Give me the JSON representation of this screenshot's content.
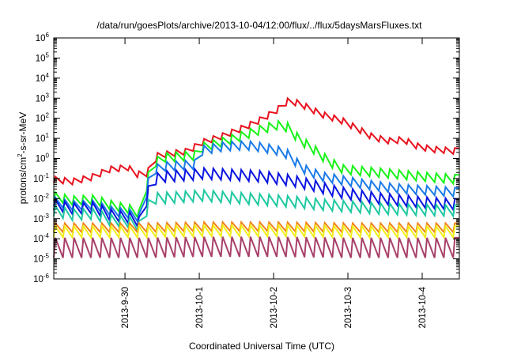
{
  "chart_data": {
    "type": "line",
    "title": "/data/run/goesPlots/archive/2013-10-04/12:00/flux/../flux/5daysMarsFluxes.txt",
    "xlabel": "Coordinated Universal Time (UTC)",
    "ylabel": {
      "base": "protons/cm",
      "sup": "2",
      "rest": "-s-sr-MeV"
    },
    "y_scale": "log",
    "ylim": [
      -6,
      6
    ],
    "y_ticks": [
      {
        "exp": -6,
        "base": "10",
        "sup": "-6"
      },
      {
        "exp": -5,
        "base": "10",
        "sup": "-5"
      },
      {
        "exp": -4,
        "base": "10",
        "sup": "-4"
      },
      {
        "exp": -3,
        "base": "10",
        "sup": "-3"
      },
      {
        "exp": -2,
        "base": "10",
        "sup": "-2"
      },
      {
        "exp": -1,
        "base": "10",
        "sup": "-1"
      },
      {
        "exp": 0,
        "base": "10",
        "sup": "0"
      },
      {
        "exp": 1,
        "base": "10",
        "sup": "1"
      },
      {
        "exp": 2,
        "base": "10",
        "sup": "2"
      },
      {
        "exp": 3,
        "base": "10",
        "sup": "3"
      },
      {
        "exp": 4,
        "base": "10",
        "sup": "4"
      },
      {
        "exp": 5,
        "base": "10",
        "sup": "5"
      },
      {
        "exp": 6,
        "base": "10",
        "sup": "6"
      }
    ],
    "x_range_days": [
      "2013-09-29 01:00",
      "2013-10-04 12:00"
    ],
    "x_ticks": [
      {
        "date": "2013-09-30",
        "label": "2013-9-30"
      },
      {
        "date": "2013-10-01",
        "label": "2013-10-1"
      },
      {
        "date": "2013-10-02",
        "label": "2013-10-2"
      },
      {
        "date": "2013-10-03",
        "label": "2013-10-3"
      },
      {
        "date": "2013-10-04",
        "label": "2013-10-4"
      }
    ],
    "grid": false,
    "legend": "none",
    "series": [
      {
        "color": "#e8121e",
        "sawtooth_decades": 0.3,
        "log10_flux": [
          [
            -1.05,
            0
          ],
          [
            -1.15,
            0.25
          ],
          [
            -0.95,
            0.5
          ],
          [
            -0.55,
            0.75
          ],
          [
            -0.45,
            1.0
          ],
          [
            -0.8,
            1.1
          ],
          [
            -0.75,
            1.25
          ],
          [
            0.15,
            1.4
          ],
          [
            0.35,
            1.8
          ],
          [
            0.8,
            2.0
          ],
          [
            1.15,
            2.3
          ],
          [
            1.6,
            2.6
          ],
          [
            1.95,
            2.8
          ],
          [
            2.4,
            3.0
          ],
          [
            2.85,
            3.15
          ],
          [
            2.75,
            3.3
          ],
          [
            2.2,
            3.6
          ],
          [
            1.85,
            3.9
          ],
          [
            1.45,
            4.1
          ],
          [
            1.05,
            4.3
          ],
          [
            0.85,
            4.55
          ],
          [
            0.95,
            4.7
          ],
          [
            0.6,
            4.9
          ],
          [
            0.45,
            5.1
          ],
          [
            0.35,
            5.47
          ]
        ]
      },
      {
        "color": "#18f218",
        "sawtooth_decades": 0.45,
        "log10_flux": [
          [
            -1.9,
            0
          ],
          [
            -2.1,
            0.25
          ],
          [
            -2.05,
            0.55
          ],
          [
            -2.3,
            0.75
          ],
          [
            -2.6,
            1.1
          ],
          [
            -2.8,
            1.15
          ],
          [
            -1.4,
            1.25
          ],
          [
            -0.3,
            1.3
          ],
          [
            0.05,
            1.5
          ],
          [
            0.15,
            1.9
          ],
          [
            0.55,
            2.0
          ],
          [
            0.85,
            2.3
          ],
          [
            1.2,
            2.6
          ],
          [
            1.45,
            2.8
          ],
          [
            1.65,
            3.0
          ],
          [
            1.55,
            3.15
          ],
          [
            0.95,
            3.3
          ],
          [
            0.45,
            3.5
          ],
          [
            -0.15,
            3.7
          ],
          [
            -0.55,
            3.9
          ],
          [
            -0.65,
            4.2
          ],
          [
            -0.75,
            4.5
          ],
          [
            -0.85,
            4.8
          ],
          [
            -0.95,
            5.1
          ],
          [
            -1.05,
            5.47
          ]
        ]
      },
      {
        "color": "#1a7ae8",
        "sawtooth_decades": 0.45,
        "log10_flux": [
          [
            -2.15,
            0
          ],
          [
            -2.35,
            0.25
          ],
          [
            -2.3,
            0.55
          ],
          [
            -2.6,
            0.75
          ],
          [
            -2.8,
            1.1
          ],
          [
            -3.0,
            1.15
          ],
          [
            -1.7,
            1.25
          ],
          [
            -0.6,
            1.3
          ],
          [
            -0.4,
            1.5
          ],
          [
            -0.3,
            1.9
          ],
          [
            0.4,
            2.0
          ],
          [
            0.6,
            2.3
          ],
          [
            0.65,
            2.6
          ],
          [
            0.55,
            2.8
          ],
          [
            0.4,
            3.0
          ],
          [
            0.2,
            3.15
          ],
          [
            -0.5,
            3.35
          ],
          [
            -0.9,
            3.6
          ],
          [
            -1.1,
            3.9
          ],
          [
            -1.3,
            4.2
          ],
          [
            -1.45,
            4.5
          ],
          [
            -1.55,
            4.8
          ],
          [
            -1.6,
            5.1
          ],
          [
            -1.7,
            5.47
          ]
        ]
      },
      {
        "color": "#0a14e0",
        "sawtooth_decades": 0.55,
        "log10_flux": [
          [
            -2.3,
            0
          ],
          [
            -2.5,
            0.25
          ],
          [
            -2.45,
            0.55
          ],
          [
            -2.8,
            0.75
          ],
          [
            -3.0,
            1.1
          ],
          [
            -3.2,
            1.15
          ],
          [
            -2.1,
            1.25
          ],
          [
            -1.1,
            1.3
          ],
          [
            -0.9,
            1.5
          ],
          [
            -0.8,
            1.9
          ],
          [
            -0.75,
            2.0
          ],
          [
            -0.8,
            2.3
          ],
          [
            -0.85,
            2.6
          ],
          [
            -0.9,
            2.8
          ],
          [
            -1.0,
            3.0
          ],
          [
            -1.1,
            3.2
          ],
          [
            -1.35,
            3.5
          ],
          [
            -1.65,
            3.8
          ],
          [
            -1.85,
            4.1
          ],
          [
            -2.0,
            4.4
          ],
          [
            -2.1,
            4.7
          ],
          [
            -2.2,
            5.0
          ],
          [
            -2.3,
            5.47
          ]
        ]
      },
      {
        "color": "#1ec8a0",
        "sawtooth_decades": 0.55,
        "log10_flux": [
          [
            -2.6,
            0
          ],
          [
            -2.8,
            0.25
          ],
          [
            -2.75,
            0.55
          ],
          [
            -3.05,
            0.75
          ],
          [
            -3.2,
            1.1
          ],
          [
            -3.4,
            1.15
          ],
          [
            -2.6,
            1.25
          ],
          [
            -2.0,
            1.3
          ],
          [
            -1.95,
            1.6
          ],
          [
            -1.85,
            2.0
          ],
          [
            -1.95,
            2.4
          ],
          [
            -2.05,
            2.8
          ],
          [
            -2.15,
            3.2
          ],
          [
            -2.3,
            3.6
          ],
          [
            -2.4,
            4.0
          ],
          [
            -2.5,
            4.4
          ],
          [
            -2.55,
            4.8
          ],
          [
            -2.6,
            5.47
          ]
        ]
      },
      {
        "color": "#f08218",
        "sawtooth_decades": 0.45,
        "log10_flux": [
          [
            -3.45,
            0
          ],
          [
            -3.45,
            1.2
          ],
          [
            -3.4,
            2.0
          ],
          [
            -3.4,
            3.0
          ],
          [
            -3.45,
            4.0
          ],
          [
            -3.45,
            5.47
          ]
        ]
      },
      {
        "color": "#f2ee1a",
        "sawtooth_decades": 0.55,
        "log10_flux": [
          [
            -3.65,
            0
          ],
          [
            -3.65,
            1.2
          ],
          [
            -3.6,
            2.0
          ],
          [
            -3.6,
            3.0
          ],
          [
            -3.65,
            4.0
          ],
          [
            -3.65,
            5.47
          ]
        ]
      },
      {
        "color": "#a8406a",
        "sawtooth_decades": 1.0,
        "log10_flux": [
          [
            -4.45,
            0
          ],
          [
            -4.45,
            1.2
          ],
          [
            -4.4,
            2.0
          ],
          [
            -4.4,
            3.0
          ],
          [
            -4.45,
            4.0
          ],
          [
            -4.45,
            5.47
          ]
        ]
      }
    ]
  }
}
